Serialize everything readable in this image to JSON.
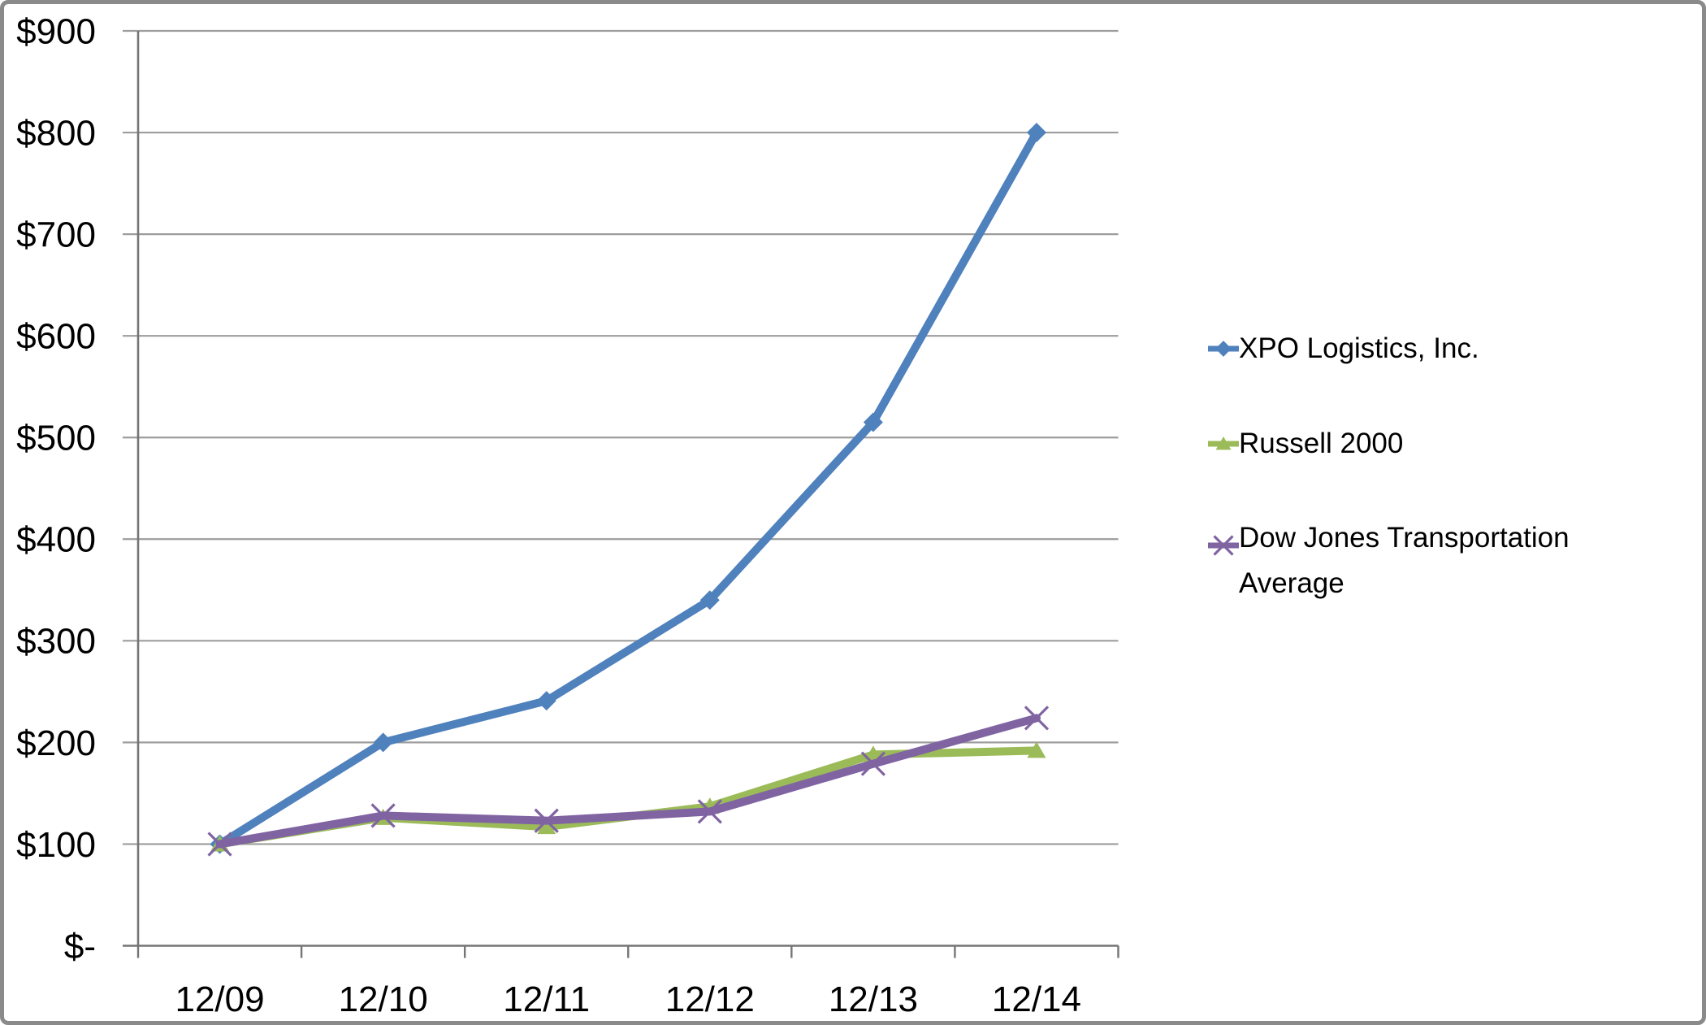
{
  "chart_data": {
    "type": "line",
    "title": "",
    "xlabel": "",
    "ylabel": "",
    "categories": [
      "12/09",
      "12/10",
      "12/11",
      "12/12",
      "12/13",
      "12/14"
    ],
    "y_axis": {
      "min": 0,
      "max": 900,
      "tick_step": 100,
      "ticks": [
        {
          "label": "$900",
          "value": 900
        },
        {
          "label": "$800",
          "value": 800
        },
        {
          "label": "$700",
          "value": 700
        },
        {
          "label": "$600",
          "value": 600
        },
        {
          "label": "$500",
          "value": 500
        },
        {
          "label": "$400",
          "value": 400
        },
        {
          "label": "$300",
          "value": 300
        },
        {
          "label": "$200",
          "value": 200
        },
        {
          "label": "$100",
          "value": 100
        },
        {
          "label": "$-",
          "value": 0
        }
      ]
    },
    "series": [
      {
        "name": "XPO Logistics, Inc.",
        "marker": "diamond",
        "color": "#4F81BD",
        "values": [
          100,
          200,
          241,
          340,
          515,
          800
        ]
      },
      {
        "name": "Russell 2000",
        "marker": "triangle",
        "color": "#9BBB59",
        "values": [
          100,
          126,
          117,
          137,
          188,
          192
        ]
      },
      {
        "name": "Dow Jones Transportation Average",
        "marker": "x",
        "color": "#8064A2",
        "values": [
          100,
          128,
          123,
          132,
          179,
          224
        ]
      }
    ],
    "grid": true,
    "legend_position": "right",
    "styles": {
      "gridline_color": "#9D9D9D",
      "axis_color": "#757575",
      "text_color": "#000000",
      "frame_border_color": "#8A8A8A",
      "background": "#FFFFFF"
    }
  }
}
